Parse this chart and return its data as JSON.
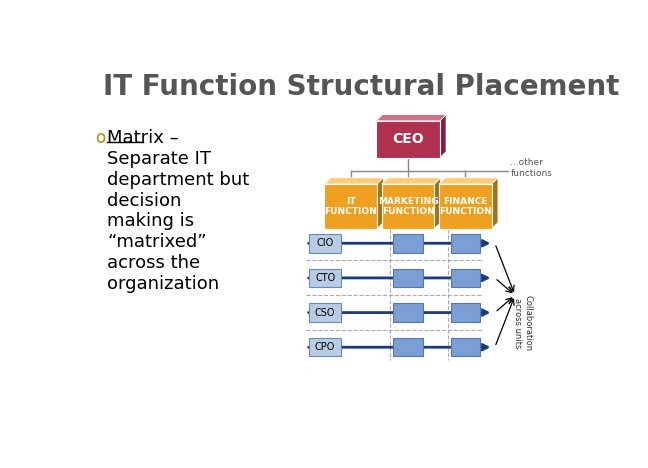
{
  "title": "IT Function Structural Placement",
  "title_fontsize": 20,
  "title_color": "#555555",
  "bg_color": "#ffffff",
  "bullet_color": "#b8860b",
  "bullet_text_lines": [
    "Matrix –",
    "Separate IT",
    "department but",
    "decision",
    "making is",
    "“matrixed”",
    "across the",
    "organization"
  ],
  "ceo_box_color": "#b03050",
  "ceo_text": "CEO",
  "function_box_color": "#f0a020",
  "function_boxes": [
    "IT\nFUNCTION",
    "MARKETING\nFUNCTION",
    "FINANCE\nFUNCTION"
  ],
  "role_labels": [
    "CIO",
    "CTO",
    "CSO",
    "CPO"
  ],
  "role_box_color": "#7b9fd4",
  "arrow_color": "#1a3a7a",
  "dashed_line_color": "#aaaaaa",
  "other_functions_text": "...other\nfunctions",
  "collab_text": "Collaboration\nacross units"
}
